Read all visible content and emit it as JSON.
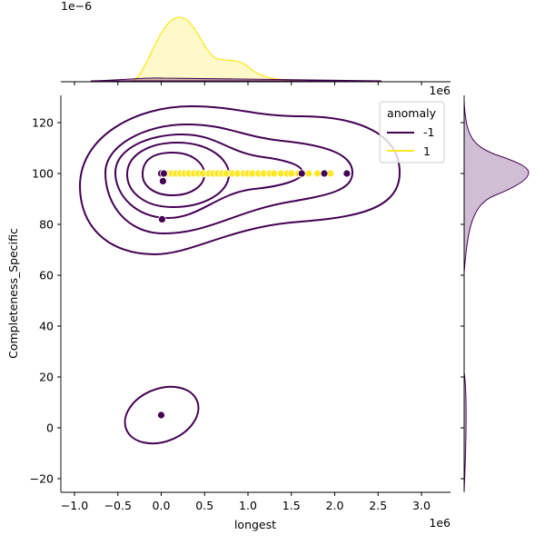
{
  "chart_data": {
    "type": "scatter",
    "subtype": "jointplot with kde contours and marginal kde",
    "xlabel": "longest",
    "ylabel": "Completeness_Specific",
    "x_offset_label": "1e6",
    "top_margin_offset_label": "1e−6",
    "xlim": [
      -1.16,
      3.34
    ],
    "ylim": [
      -25,
      131
    ],
    "xticks": [
      -1.0,
      -0.5,
      0.0,
      0.5,
      1.0,
      1.5,
      2.0,
      2.5,
      3.0
    ],
    "xtick_labels": [
      "−1.0",
      "−0.5",
      "0.0",
      "0.5",
      "1.0",
      "1.5",
      "2.0",
      "2.5",
      "3.0"
    ],
    "yticks": [
      -20,
      0,
      20,
      40,
      60,
      80,
      100,
      120
    ],
    "ytick_labels": [
      "−20",
      "0",
      "20",
      "40",
      "60",
      "80",
      "100",
      "120"
    ],
    "legend": {
      "title": "anomaly",
      "placement": "top-right",
      "entries": [
        "-1",
        "1"
      ]
    },
    "colors": {
      "-1": "#440154",
      "1": "#fde725"
    },
    "series": [
      {
        "name": "-1",
        "x": [
          0.0,
          0.03,
          0.02,
          0.01,
          0.0,
          1.62,
          1.88,
          2.14
        ],
        "y": [
          100,
          100,
          97,
          82,
          5,
          100,
          100,
          100
        ]
      },
      {
        "name": "1",
        "x": [
          0.08,
          0.12,
          0.17,
          0.22,
          0.27,
          0.32,
          0.38,
          0.43,
          0.48,
          0.55,
          0.6,
          0.65,
          0.7,
          0.75,
          0.82,
          0.88,
          0.95,
          1.0,
          1.05,
          1.12,
          1.18,
          1.25,
          1.3,
          1.38,
          1.45,
          1.5,
          1.58,
          1.7,
          1.8,
          1.95
        ],
        "y": [
          100,
          100,
          100,
          100,
          100,
          100,
          100,
          100,
          100,
          100,
          100,
          100,
          100,
          100,
          100,
          100,
          100,
          100,
          100,
          100,
          100,
          100,
          100,
          100,
          100,
          100,
          100,
          100,
          100,
          100
        ]
      }
    ],
    "grid": false
  }
}
